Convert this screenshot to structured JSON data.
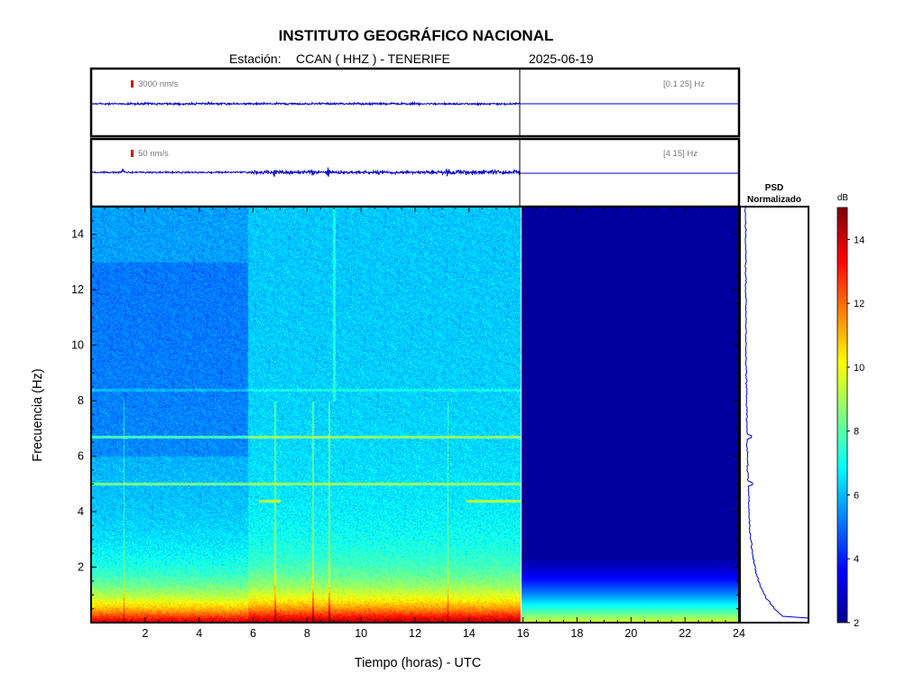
{
  "header": {
    "title": "INSTITUTO GEOGRÁFICO NACIONAL",
    "station_label": "Estación:",
    "station": "CCAN ( HHZ ) - TENERIFE",
    "date": "2025-06-19"
  },
  "chart_data": [
    {
      "type": "line",
      "panel": "seismogram",
      "scale_label": "3000 nm/s",
      "filter_label": "[0.1 25] Hz",
      "x_range_hours": [
        0,
        24
      ],
      "data_end_hour": 15.9,
      "color": "#0000cc"
    },
    {
      "type": "line",
      "panel": "seismogram",
      "scale_label": "50 nm/s",
      "filter_label": "[4 15] Hz",
      "x_range_hours": [
        0,
        24
      ],
      "data_end_hour": 15.9,
      "events_hours": [
        1.2,
        6.8,
        8.2,
        8.8,
        13.2
      ],
      "color": "#0000cc"
    },
    {
      "type": "heatmap",
      "panel": "spectrogram",
      "xlabel": "Tiempo (horas) - UTC",
      "ylabel": "Frecuencia  (Hz)",
      "xlim": [
        0,
        24
      ],
      "ylim": [
        0,
        15
      ],
      "x_ticks": [
        "2",
        "4",
        "6",
        "8",
        "10",
        "12",
        "14",
        "16",
        "18",
        "20",
        "22",
        "24"
      ],
      "y_ticks": [
        "2",
        "4",
        "6",
        "8",
        "10",
        "12",
        "14"
      ],
      "data_end_hour": 15.9,
      "harmonic_lines_hz": [
        6.7,
        5.0,
        4.4,
        8.4,
        4.0
      ],
      "colormap": "jet"
    },
    {
      "type": "line",
      "panel": "psd",
      "title_line1": "PSD",
      "title_line2": "Normalizado",
      "color": "#0000cc"
    },
    {
      "type": "colorbar",
      "unit": "dB",
      "range": [
        2,
        15
      ],
      "ticks": [
        "2",
        "4",
        "6",
        "8",
        "10",
        "12",
        "14"
      ]
    }
  ]
}
